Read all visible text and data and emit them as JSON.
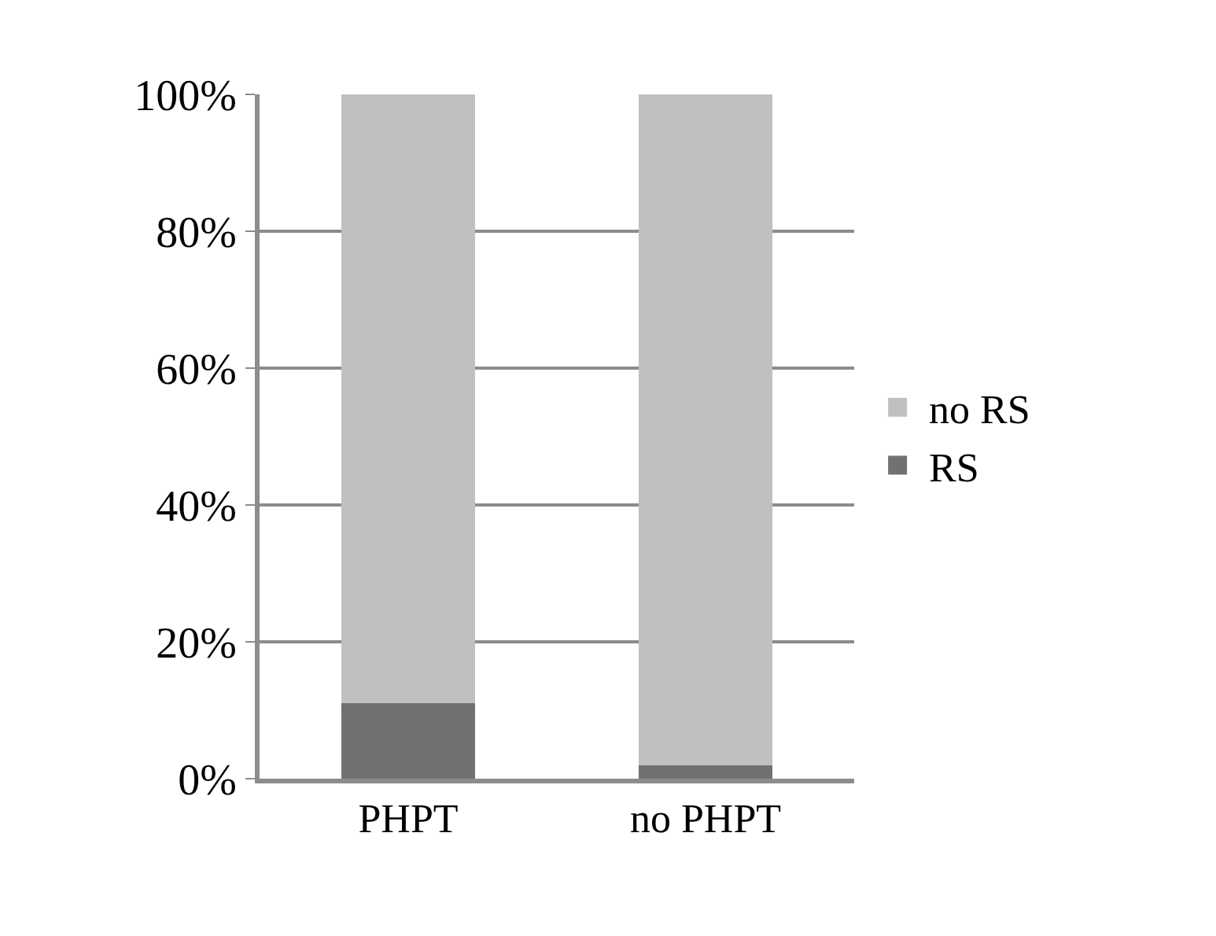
{
  "chart_data": {
    "type": "bar",
    "stacked": true,
    "categories": [
      "PHPT",
      "no PHPT"
    ],
    "series": [
      {
        "name": "RS",
        "color": "#717171",
        "values": [
          11,
          2
        ]
      },
      {
        "name": "no RS",
        "color": "#c0c0c0",
        "values": [
          89,
          98
        ]
      }
    ],
    "ylim": [
      0,
      100
    ],
    "yticks": [
      {
        "value": 0,
        "label": "0%"
      },
      {
        "value": 20,
        "label": "20%"
      },
      {
        "value": 40,
        "label": "40%"
      },
      {
        "value": 60,
        "label": "60%"
      },
      {
        "value": 80,
        "label": "80%"
      },
      {
        "value": 100,
        "label": "100%"
      }
    ],
    "grid": "y",
    "legend": "right"
  }
}
